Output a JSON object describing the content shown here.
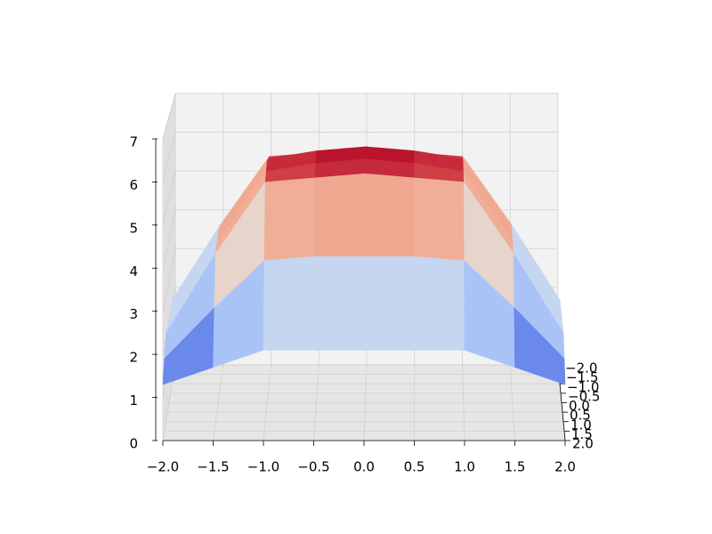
{
  "chart_data": {
    "type": "surface",
    "colormap": "coolwarm",
    "grid": true,
    "x": [
      -2,
      -1.5,
      -1,
      -0.5,
      0,
      0.5,
      1,
      1.5,
      2
    ],
    "y": [
      -2,
      -1.5,
      -1,
      -0.5,
      0,
      0.5,
      1,
      1.5,
      2
    ],
    "z": [
      [
        1.3,
        1.7,
        2.1,
        2.1,
        2.1,
        2.1,
        2.1,
        1.7,
        1.3
      ],
      [
        1.7,
        2.9,
        4.0,
        4.1,
        4.1,
        4.1,
        4.0,
        2.9,
        1.7
      ],
      [
        2.1,
        4.0,
        5.7,
        5.8,
        5.9,
        5.8,
        5.7,
        4.0,
        2.1
      ],
      [
        2.1,
        4.1,
        5.8,
        6.0,
        6.1,
        6.0,
        5.8,
        4.1,
        2.1
      ],
      [
        2.1,
        4.1,
        5.9,
        6.1,
        6.2,
        6.1,
        5.9,
        4.1,
        2.1
      ],
      [
        2.1,
        4.1,
        5.8,
        6.0,
        6.1,
        6.0,
        5.8,
        4.1,
        2.1
      ],
      [
        2.1,
        4.0,
        5.7,
        5.8,
        5.9,
        5.8,
        5.7,
        4.0,
        2.1
      ],
      [
        1.7,
        2.9,
        4.0,
        4.1,
        4.1,
        4.1,
        4.0,
        2.9,
        1.7
      ],
      [
        1.3,
        1.7,
        2.1,
        2.1,
        2.1,
        2.1,
        2.1,
        1.7,
        1.3
      ]
    ],
    "xlim": [
      -2,
      2
    ],
    "ylim": [
      -2,
      2
    ],
    "zlim": [
      0,
      7
    ],
    "xticks": [
      {
        "value": -2,
        "label": "−2.0"
      },
      {
        "value": -1.5,
        "label": "−1.5"
      },
      {
        "value": -1,
        "label": "−1.0"
      },
      {
        "value": -0.5,
        "label": "−0.5"
      },
      {
        "value": 0,
        "label": "0.0"
      },
      {
        "value": 0.5,
        "label": "0.5"
      },
      {
        "value": 1,
        "label": "1.0"
      },
      {
        "value": 1.5,
        "label": "1.5"
      },
      {
        "value": 2,
        "label": "2.0"
      }
    ],
    "yticks": [
      {
        "value": -2,
        "label": "−2.0"
      },
      {
        "value": -1.5,
        "label": "−1.5"
      },
      {
        "value": -1,
        "label": "−1.0"
      },
      {
        "value": -0.5,
        "label": "−0.5"
      },
      {
        "value": 0,
        "label": "0.0"
      },
      {
        "value": 0.5,
        "label": "0.5"
      },
      {
        "value": 1,
        "label": "1.0"
      },
      {
        "value": 1.5,
        "label": "1.5"
      },
      {
        "value": 2,
        "label": "2.0"
      }
    ],
    "zticks": [
      0,
      1,
      2,
      3,
      4,
      5,
      6,
      7
    ]
  }
}
